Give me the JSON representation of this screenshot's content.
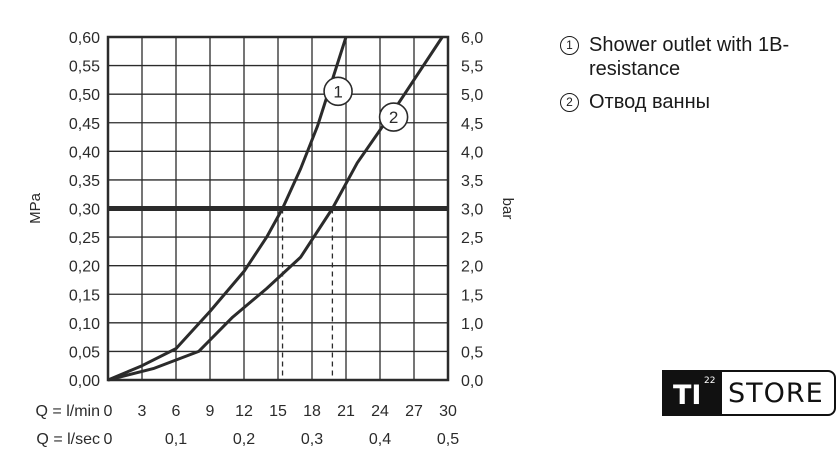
{
  "chart_data": {
    "type": "line",
    "ylabel_left": "MPa",
    "ylabel_right": "bar",
    "y_left_ticks": [
      "0,00",
      "0,05",
      "0,10",
      "0,15",
      "0,20",
      "0,25",
      "0,30",
      "0,35",
      "0,40",
      "0,45",
      "0,50",
      "0,55",
      "0,60"
    ],
    "y_right_ticks": [
      "0,0",
      "0,5",
      "1,0",
      "1,5",
      "2,0",
      "2,5",
      "3,0",
      "3,5",
      "4,0",
      "4,5",
      "5,0",
      "5,5",
      "6,0"
    ],
    "ylim": [
      0,
      0.6
    ],
    "xlim": [
      0,
      30
    ],
    "x_row1_label": "Q = l/min",
    "x_row1_ticks": [
      {
        "v": 0,
        "t": "0"
      },
      {
        "v": 3,
        "t": "3"
      },
      {
        "v": 6,
        "t": "6"
      },
      {
        "v": 9,
        "t": "9"
      },
      {
        "v": 12,
        "t": "12"
      },
      {
        "v": 15,
        "t": "15"
      },
      {
        "v": 18,
        "t": "18"
      },
      {
        "v": 21,
        "t": "21"
      },
      {
        "v": 24,
        "t": "24"
      },
      {
        "v": 27,
        "t": "27"
      },
      {
        "v": 30,
        "t": "30"
      }
    ],
    "x_row2_label": "Q = l/sec",
    "x_row2_ticks": [
      {
        "v": 0,
        "t": "0"
      },
      {
        "v": 6,
        "t": "0,1"
      },
      {
        "v": 12,
        "t": "0,2"
      },
      {
        "v": 18,
        "t": "0,3"
      },
      {
        "v": 24,
        "t": "0,4"
      },
      {
        "v": 30,
        "t": "0,5"
      }
    ],
    "grid": true,
    "reference_line": {
      "y": 0.3
    },
    "drop_lines": [
      15.4,
      19.8
    ],
    "series": [
      {
        "name": "1",
        "label_at": [
          20.3,
          0.505
        ],
        "points": [
          [
            0,
            0
          ],
          [
            3,
            0.025
          ],
          [
            6,
            0.055
          ],
          [
            9,
            0.12
          ],
          [
            12,
            0.19
          ],
          [
            14,
            0.25
          ],
          [
            15.4,
            0.3
          ],
          [
            17,
            0.37
          ],
          [
            18.5,
            0.445
          ],
          [
            21,
            0.6
          ]
        ]
      },
      {
        "name": "2",
        "label_at": [
          25.2,
          0.46
        ],
        "points": [
          [
            0,
            0
          ],
          [
            4,
            0.02
          ],
          [
            8,
            0.05
          ],
          [
            11,
            0.11
          ],
          [
            14,
            0.16
          ],
          [
            17,
            0.215
          ],
          [
            19.8,
            0.3
          ],
          [
            22,
            0.38
          ],
          [
            25.5,
            0.48
          ],
          [
            29.5,
            0.6
          ]
        ]
      }
    ]
  },
  "legend": [
    {
      "num": "1",
      "text": "Shower outlet with 1B-resistance"
    },
    {
      "num": "2",
      "text": "Отвод ванны"
    }
  ],
  "logo": {
    "text_box": "TI",
    "superscript": "22",
    "text_store": "STORE"
  }
}
